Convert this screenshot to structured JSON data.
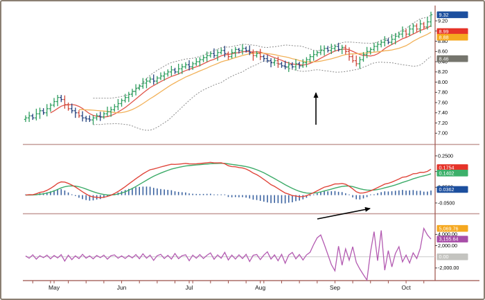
{
  "theme": {
    "background": "#ffffff",
    "frame_border": "#8a7f72",
    "axis_line": "#9b4f48",
    "separator_line": "#c49b97",
    "tick_text": "#000000",
    "zero_line": "#cccccc",
    "annotation": "#000000"
  },
  "chart_data": [
    {
      "type": "ohlc",
      "panel": "price",
      "title": "",
      "ylim": [
        6.8,
        9.5
      ],
      "grid": false,
      "yticks": [
        {
          "v": 9.2,
          "t": "9.20"
        },
        {
          "v": 9.0,
          "t": "9.00"
        },
        {
          "v": 8.8,
          "t": "8.80"
        },
        {
          "v": 8.6,
          "t": "8.60"
        },
        {
          "v": 8.4,
          "t": "8.40"
        },
        {
          "v": 8.2,
          "t": "8.20"
        },
        {
          "v": 8.0,
          "t": "8.00"
        },
        {
          "v": 7.8,
          "t": "7.80"
        },
        {
          "v": 7.6,
          "t": "7.60"
        },
        {
          "v": 7.4,
          "t": "7.40"
        },
        {
          "v": 7.2,
          "t": "7.20"
        },
        {
          "v": 7.0,
          "t": "7.00"
        }
      ],
      "up_color": "#2e9e5e",
      "down_color": "#24427e",
      "strong_down_color": "#cf4a3c",
      "candles": [
        [
          7.27,
          7.35,
          7.22,
          7.3
        ],
        [
          7.3,
          7.42,
          7.22,
          7.34
        ],
        [
          7.34,
          7.38,
          7.26,
          7.3
        ],
        [
          7.3,
          7.48,
          7.25,
          7.38
        ],
        [
          7.38,
          7.5,
          7.28,
          7.44
        ],
        [
          7.44,
          7.49,
          7.36,
          7.4
        ],
        [
          7.4,
          7.57,
          7.33,
          7.48
        ],
        [
          7.48,
          7.59,
          7.42,
          7.55
        ],
        [
          7.55,
          7.69,
          7.51,
          7.62
        ],
        [
          7.62,
          7.75,
          7.53,
          7.7
        ],
        [
          7.7,
          7.75,
          7.61,
          7.66
        ],
        [
          7.66,
          7.74,
          7.48,
          7.56
        ],
        [
          7.56,
          7.6,
          7.44,
          7.48
        ],
        [
          7.48,
          7.58,
          7.39,
          7.44
        ],
        [
          7.44,
          7.5,
          7.3,
          7.4
        ],
        [
          7.4,
          7.45,
          7.3,
          7.34
        ],
        [
          7.34,
          7.43,
          7.23,
          7.3
        ],
        [
          7.3,
          7.34,
          7.22,
          7.28
        ],
        [
          7.28,
          7.35,
          7.22,
          7.26
        ],
        [
          7.26,
          7.35,
          7.17,
          7.3
        ],
        [
          7.3,
          7.39,
          7.25,
          7.34
        ],
        [
          7.34,
          7.42,
          7.24,
          7.32
        ],
        [
          7.32,
          7.42,
          7.28,
          7.38
        ],
        [
          7.38,
          7.52,
          7.33,
          7.42
        ],
        [
          7.42,
          7.52,
          7.32,
          7.46
        ],
        [
          7.46,
          7.57,
          7.42,
          7.52
        ],
        [
          7.52,
          7.67,
          7.45,
          7.58
        ],
        [
          7.58,
          7.68,
          7.52,
          7.64
        ],
        [
          7.64,
          7.77,
          7.6,
          7.7
        ],
        [
          7.7,
          7.81,
          7.61,
          7.76
        ],
        [
          7.76,
          7.87,
          7.71,
          7.82
        ],
        [
          7.82,
          7.96,
          7.74,
          7.88
        ],
        [
          7.88,
          7.96,
          7.84,
          7.92
        ],
        [
          7.92,
          8.08,
          7.87,
          7.98
        ],
        [
          7.98,
          8.08,
          7.88,
          8.02
        ],
        [
          8.02,
          8.11,
          7.98,
          8.06
        ],
        [
          8.06,
          8.15,
          7.95,
          8.02
        ],
        [
          8.02,
          8.12,
          7.96,
          8.08
        ],
        [
          8.08,
          8.19,
          8.04,
          8.12
        ],
        [
          8.12,
          8.21,
          8.03,
          8.16
        ],
        [
          8.16,
          8.25,
          8.11,
          8.2
        ],
        [
          8.2,
          8.32,
          8.12,
          8.24
        ],
        [
          8.24,
          8.28,
          8.16,
          8.2
        ],
        [
          8.2,
          8.36,
          8.15,
          8.26
        ],
        [
          8.26,
          8.36,
          8.16,
          8.3
        ],
        [
          8.3,
          8.39,
          8.26,
          8.34
        ],
        [
          8.34,
          8.43,
          8.23,
          8.3
        ],
        [
          8.3,
          8.4,
          8.24,
          8.36
        ],
        [
          8.36,
          8.47,
          8.32,
          8.4
        ],
        [
          8.4,
          8.49,
          8.31,
          8.44
        ],
        [
          8.44,
          8.53,
          8.39,
          8.48
        ],
        [
          8.48,
          8.6,
          8.4,
          8.52
        ],
        [
          8.52,
          8.6,
          8.48,
          8.56
        ],
        [
          8.56,
          8.66,
          8.47,
          8.52
        ],
        [
          8.52,
          8.64,
          8.42,
          8.58
        ],
        [
          8.58,
          8.67,
          8.54,
          8.62
        ],
        [
          8.62,
          8.71,
          8.49,
          8.56
        ],
        [
          8.56,
          8.6,
          8.44,
          8.5
        ],
        [
          8.5,
          8.65,
          8.46,
          8.58
        ],
        [
          8.58,
          8.69,
          8.49,
          8.64
        ],
        [
          8.64,
          8.67,
          8.56,
          8.62
        ],
        [
          8.62,
          8.74,
          8.54,
          8.66
        ],
        [
          8.66,
          8.7,
          8.58,
          8.62
        ],
        [
          8.62,
          8.72,
          8.53,
          8.58
        ],
        [
          8.58,
          8.64,
          8.42,
          8.52
        ],
        [
          8.52,
          8.61,
          8.48,
          8.56
        ],
        [
          8.56,
          8.65,
          8.43,
          8.5
        ],
        [
          8.5,
          8.54,
          8.4,
          8.46
        ],
        [
          8.46,
          8.53,
          8.38,
          8.42
        ],
        [
          8.42,
          8.47,
          8.29,
          8.38
        ],
        [
          8.38,
          8.47,
          8.32,
          8.42
        ],
        [
          8.42,
          8.5,
          8.28,
          8.36
        ],
        [
          8.36,
          8.4,
          8.28,
          8.32
        ],
        [
          8.32,
          8.42,
          8.25,
          8.3
        ],
        [
          8.3,
          8.4,
          8.2,
          8.34
        ],
        [
          8.34,
          8.39,
          8.26,
          8.3
        ],
        [
          8.3,
          8.45,
          8.23,
          8.36
        ],
        [
          8.36,
          8.4,
          8.26,
          8.32
        ],
        [
          8.32,
          8.45,
          8.28,
          8.38
        ],
        [
          8.38,
          8.49,
          8.29,
          8.44
        ],
        [
          8.44,
          8.55,
          8.38,
          8.5
        ],
        [
          8.5,
          8.62,
          8.42,
          8.54
        ],
        [
          8.54,
          8.62,
          8.5,
          8.58
        ],
        [
          8.58,
          8.72,
          8.53,
          8.62
        ],
        [
          8.62,
          8.72,
          8.52,
          8.66
        ],
        [
          8.66,
          8.71,
          8.58,
          8.62
        ],
        [
          8.62,
          8.75,
          8.55,
          8.66
        ],
        [
          8.66,
          8.74,
          8.6,
          8.7
        ],
        [
          8.7,
          8.77,
          8.6,
          8.64
        ],
        [
          8.64,
          8.73,
          8.55,
          8.68
        ],
        [
          8.68,
          8.73,
          8.54,
          8.6
        ],
        [
          8.6,
          8.68,
          8.42,
          8.5
        ],
        [
          8.5,
          8.54,
          8.38,
          8.42
        ],
        [
          8.42,
          8.52,
          8.31,
          8.36
        ],
        [
          8.36,
          8.5,
          8.26,
          8.44
        ],
        [
          8.44,
          8.59,
          8.4,
          8.54
        ],
        [
          8.54,
          8.69,
          8.47,
          8.6
        ],
        [
          8.6,
          8.68,
          8.54,
          8.64
        ],
        [
          8.64,
          8.77,
          8.6,
          8.7
        ],
        [
          8.7,
          8.79,
          8.61,
          8.74
        ],
        [
          8.74,
          8.83,
          8.68,
          8.78
        ],
        [
          8.78,
          8.9,
          8.7,
          8.82
        ],
        [
          8.82,
          8.86,
          8.74,
          8.78
        ],
        [
          8.78,
          8.94,
          8.73,
          8.84
        ],
        [
          8.84,
          8.96,
          8.74,
          8.9
        ],
        [
          8.9,
          8.99,
          8.86,
          8.94
        ],
        [
          8.94,
          9.09,
          8.87,
          9.0
        ],
        [
          9.0,
          9.04,
          8.88,
          8.94
        ],
        [
          8.94,
          9.11,
          8.9,
          9.04
        ],
        [
          9.04,
          9.15,
          8.95,
          9.1
        ],
        [
          9.1,
          9.15,
          8.98,
          9.04
        ],
        [
          9.04,
          9.22,
          8.96,
          9.14
        ],
        [
          9.14,
          9.18,
          9.04,
          9.08
        ],
        [
          9.08,
          9.28,
          9.03,
          9.18
        ],
        [
          9.18,
          9.38,
          9.08,
          9.32
        ]
      ],
      "overlays": [
        {
          "name": "ma-fast",
          "kind": "sma",
          "period": 8,
          "color": "#e0554a"
        },
        {
          "name": "ma-slow",
          "kind": "sma",
          "period": 16,
          "color": "#f2b158"
        },
        {
          "name": "bollinger-bands",
          "kind": "bands",
          "period": 20,
          "mult": 2,
          "color": "#8a8a8a"
        }
      ],
      "badges": [
        {
          "label": "9.32",
          "value": 9.32,
          "color": "#1c4f9e"
        },
        {
          "label": "8.99",
          "value": 8.99,
          "color": "#e63329"
        },
        {
          "label": "8.88",
          "value": 8.88,
          "color": "#f5a81f"
        },
        {
          "label": "8.46",
          "value": 8.46,
          "color": "#75756d"
        }
      ],
      "annotations": [
        {
          "kind": "arrow",
          "from": [
            454,
            178
          ],
          "to": [
            454,
            132
          ]
        }
      ]
    },
    {
      "type": "line",
      "panel": "macd",
      "title": "",
      "derived_from": "price.closes",
      "params": {
        "fast": 12,
        "slow": 26,
        "signal": 9
      },
      "ylim": [
        -0.112,
        0.316
      ],
      "yticks": [
        {
          "v": 0.25,
          "t": "0.2500"
        },
        {
          "v": 0.15,
          "t": "0.1500"
        },
        {
          "v": 0.05,
          "t": "0.0500"
        },
        {
          "v": -0.05,
          "t": "-0.0500"
        }
      ],
      "colors": {
        "macd_line": "#e0453a",
        "signal_line": "#3cab68",
        "histogram": "#3a62a0"
      },
      "badges": [
        {
          "label": "0.1754",
          "value": 0.1754,
          "color": "#e63329"
        },
        {
          "label": "0.1402",
          "value": 0.1402,
          "color": "#3cb06a"
        },
        {
          "label": "0.0362",
          "value": 0.0362,
          "color": "#1c4f9e"
        }
      ],
      "annotations": [
        {
          "kind": "arrow",
          "from": [
            456,
            314
          ],
          "to": [
            532,
            299
          ]
        }
      ]
    },
    {
      "type": "line",
      "panel": "oscillator",
      "title": "",
      "ylim": [
        -4250,
        7625
      ],
      "zero_line": true,
      "line_color": "#b35ab1",
      "yticks": [
        {
          "v": 4000,
          "t": "4,000.00"
        },
        {
          "v": 2000,
          "t": "2,000.00"
        },
        {
          "v": -2000,
          "t": "-2,000.00"
        }
      ],
      "values": [
        150,
        -250,
        350,
        -420,
        200,
        -160,
        300,
        -360,
        240,
        -200,
        380,
        -760,
        280,
        -500,
        180,
        -320,
        440,
        -240,
        160,
        -360,
        240,
        -160,
        300,
        -420,
        200,
        340,
        -260,
        160,
        -300,
        240,
        -200,
        400,
        -340,
        540,
        -260,
        300,
        -640,
        200,
        440,
        -300,
        260,
        -400,
        590,
        -340,
        200,
        360,
        -700,
        300,
        -260,
        400,
        -300,
        260,
        700,
        -440,
        340,
        -260,
        790,
        -560,
        300,
        -400,
        350,
        -300,
        440,
        -840,
        260,
        400,
        -500,
        300,
        890,
        -400,
        340,
        -700,
        440,
        -1140,
        300,
        790,
        -360,
        400,
        -560,
        340,
        800,
        2200,
        3400,
        3900,
        2200,
        400,
        -1400,
        -2500,
        1900,
        -1500,
        1400,
        -600,
        1800,
        -1000,
        -2200,
        -3200,
        -4150,
        900,
        4500,
        -700,
        4700,
        -2400,
        1100,
        -1800,
        600,
        1800,
        -900,
        300,
        -1100,
        700,
        -300,
        1500,
        5069.76,
        3900,
        3155.64
      ],
      "badges": [
        {
          "label": "5,069.76",
          "value": 5069.76,
          "color": "#f5a81f"
        },
        {
          "label": "3,155.64",
          "value": 3155.64,
          "color": "#a84ea8"
        },
        {
          "label": "0.00",
          "value": 0,
          "color": "#c4c4c0"
        }
      ]
    }
  ],
  "time_axis": {
    "months": [
      {
        "label": "May",
        "index": 8
      },
      {
        "label": "Jun",
        "index": 27
      },
      {
        "label": "Jul",
        "index": 46
      },
      {
        "label": "Aug",
        "index": 66
      },
      {
        "label": "Sep",
        "index": 87
      },
      {
        "label": "Oct",
        "index": 107
      }
    ],
    "minor_tick_step": 5
  }
}
